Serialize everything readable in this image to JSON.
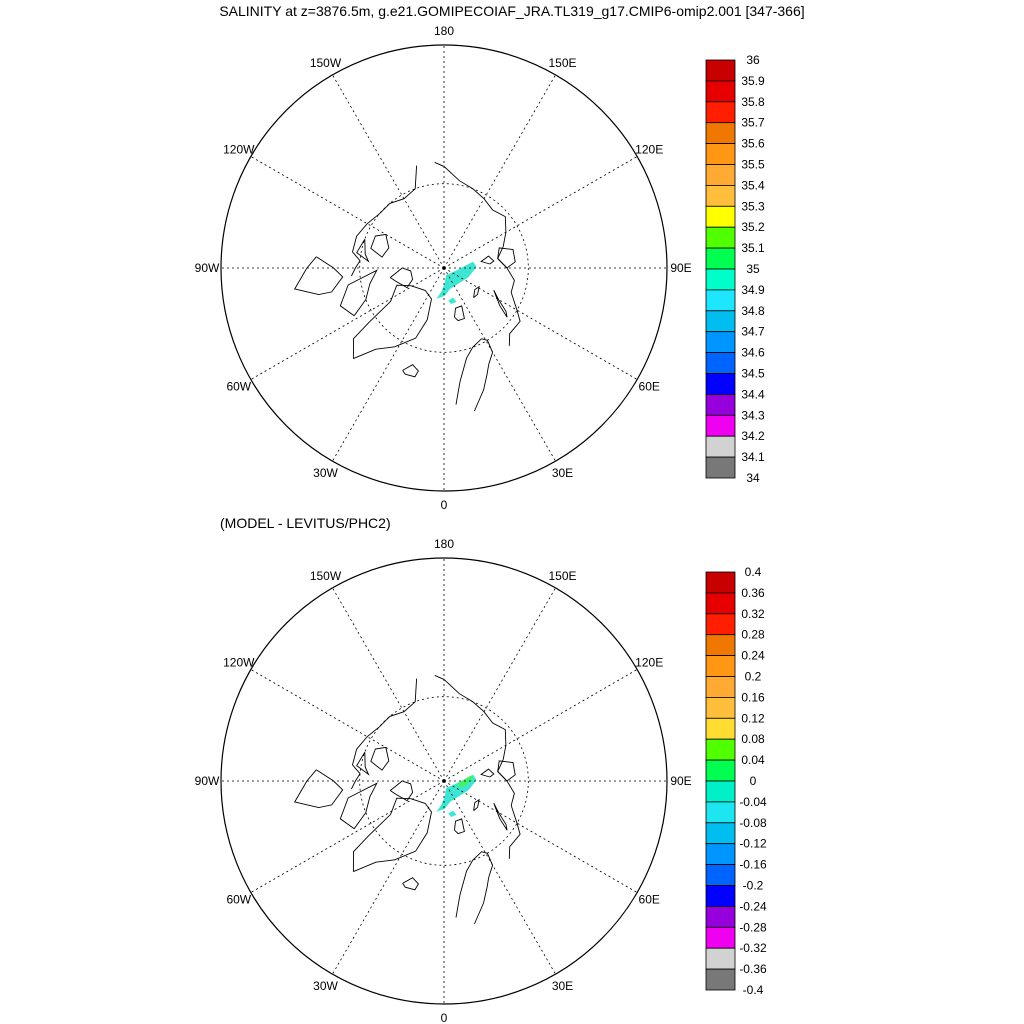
{
  "header": {
    "title": "SALINITY at z=3876.5m, g.e21.GOMIPECOIAF_JRA.TL319_g17.CMIP6-omip2.001 [347-366]"
  },
  "panels": [
    {
      "id": "top",
      "subtitle": "",
      "longitude_labels": {
        "180": "180",
        "150E": "150E",
        "120E": "120E",
        "90E": "90E",
        "60E": "60E",
        "30E": "30E",
        "0": "0",
        "30W": "30W",
        "60W": "60W",
        "90W": "90W",
        "120W": "120W",
        "150W": "150W"
      },
      "colorbar": {
        "labels": [
          "36",
          "35.9",
          "35.8",
          "35.7",
          "35.6",
          "35.5",
          "35.4",
          "35.3",
          "35.2",
          "35.1",
          "35",
          "34.9",
          "34.8",
          "34.7",
          "34.6",
          "34.5",
          "34.4",
          "34.3",
          "34.2",
          "34.1",
          "34"
        ],
        "colors": [
          "#c80000",
          "#e60000",
          "#ff1e00",
          "#f07800",
          "#ff9614",
          "#ffaa32",
          "#ffbe3c",
          "#ffff00",
          "#50ff00",
          "#00ff50",
          "#00ffc8",
          "#1ee6ff",
          "#00bef0",
          "#0096ff",
          "#0064ff",
          "#0000ff",
          "#9600dc",
          "#f000f0",
          "#d2d2d2",
          "#787878"
        ]
      },
      "field": "salinity",
      "field_color": "#3ce6d2"
    },
    {
      "id": "bottom",
      "subtitle": "(MODEL - LEVITUS/PHC2)",
      "longitude_labels": {
        "180": "180",
        "150E": "150E",
        "120E": "120E",
        "90E": "90E",
        "60E": "60E",
        "30E": "30E",
        "0": "0",
        "30W": "30W",
        "60W": "60W",
        "90W": "90W",
        "120W": "120W",
        "150W": "150W"
      },
      "colorbar": {
        "labels": [
          "0.4",
          "0.36",
          "0.32",
          "0.28",
          "0.24",
          "0.2",
          "0.16",
          "0.12",
          "0.08",
          "0.04",
          "0",
          "-0.04",
          "-0.08",
          "-0.12",
          "-0.16",
          "-0.2",
          "-0.24",
          "-0.28",
          "-0.32",
          "-0.36",
          "-0.4"
        ],
        "colors": [
          "#c80000",
          "#e60000",
          "#ff1e00",
          "#f07800",
          "#ff9614",
          "#ffaa32",
          "#ffbe3c",
          "#ffdc32",
          "#50ff00",
          "#00ff50",
          "#00f0c8",
          "#1ee6f0",
          "#00bef0",
          "#0096ff",
          "#0064ff",
          "#0000ff",
          "#9600dc",
          "#f000f0",
          "#d2d2d2",
          "#787878"
        ]
      },
      "field": "difference",
      "field_color": "#3ce6d2",
      "field_accent": "#46f064"
    }
  ]
}
